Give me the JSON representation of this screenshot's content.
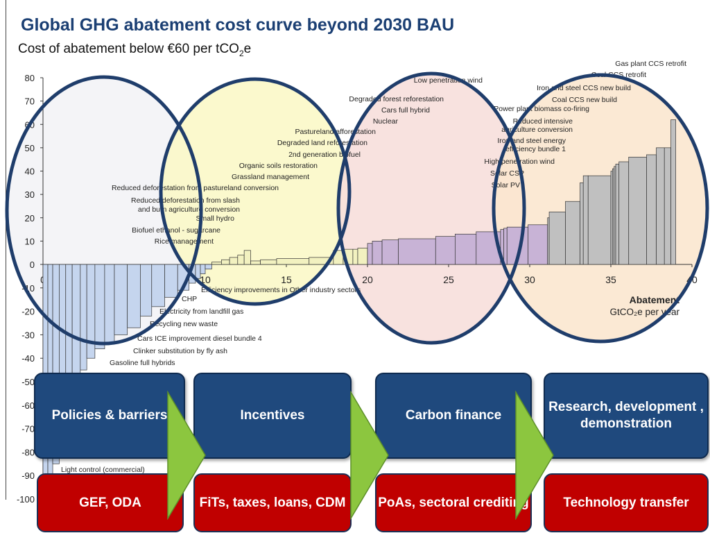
{
  "title": "Global GHG abatement cost curve beyond 2030 BAU",
  "subtitle_prefix": "Cost of abatement below €60 per tCO",
  "subtitle_sub": "2",
  "subtitle_suffix": "e",
  "colors": {
    "title": "#1b3f73",
    "box_blue": "#1f497d",
    "box_red": "#c00000",
    "arrow_green": "#8cc63f",
    "ellipse_stroke": "#1f3d6b",
    "fill_negative": "#c5d5ee",
    "fill_low": "#f2f1c0",
    "fill_mid": "#c8b3d6",
    "fill_high": "#c0c0c0"
  },
  "chart_data": {
    "type": "bar",
    "variant": "marginal abatement cost curve (variable-width bars)",
    "ylim": [
      -100,
      80
    ],
    "xlim": [
      0,
      40
    ],
    "y_ticks": [
      "80",
      "70",
      "60",
      "50",
      "40",
      "30",
      "20",
      "10",
      "0",
      "-10",
      "-20",
      "-30",
      "-40",
      "-50",
      "-60",
      "-70",
      "-80",
      "-90",
      "-100"
    ],
    "x_ticks": [
      "0",
      "5",
      "10",
      "15",
      "20",
      "25",
      "30",
      "35",
      "40"
    ],
    "xlabel_line1": "Abatement",
    "xlabel_line2": "GtCO₂e per year",
    "series": [
      {
        "values_x_start_width_cost": [
          [
            0.0,
            0.3,
            -100
          ],
          [
            0.3,
            0.3,
            -92
          ],
          [
            0.6,
            0.4,
            -85
          ],
          [
            1.0,
            0.4,
            -70
          ],
          [
            1.4,
            0.4,
            -60
          ],
          [
            1.8,
            0.5,
            -50
          ],
          [
            2.3,
            0.4,
            -45
          ],
          [
            2.7,
            0.5,
            -40
          ],
          [
            3.2,
            0.6,
            -36
          ],
          [
            3.8,
            0.6,
            -34
          ],
          [
            4.4,
            0.8,
            -30
          ],
          [
            5.2,
            0.8,
            -27
          ],
          [
            6.0,
            0.7,
            -22
          ],
          [
            6.7,
            0.8,
            -18
          ],
          [
            7.5,
            0.8,
            -14
          ],
          [
            8.3,
            0.7,
            -11
          ],
          [
            9.0,
            0.4,
            -8
          ],
          [
            9.4,
            0.3,
            -6
          ],
          [
            9.7,
            0.3,
            -4
          ],
          [
            10.0,
            0.4,
            -2
          ],
          [
            10.4,
            0.6,
            1
          ],
          [
            11.0,
            0.5,
            2
          ],
          [
            11.5,
            0.5,
            3
          ],
          [
            12.0,
            0.4,
            4
          ],
          [
            12.4,
            0.4,
            6
          ],
          [
            12.8,
            0.6,
            1.5
          ],
          [
            13.4,
            1.0,
            2
          ],
          [
            14.4,
            2.0,
            2.5
          ],
          [
            16.4,
            1.5,
            3
          ],
          [
            17.9,
            0.6,
            6
          ],
          [
            18.5,
            0.6,
            6.5
          ],
          [
            19.1,
            0.3,
            6.5
          ],
          [
            19.4,
            0.6,
            7
          ],
          [
            20.0,
            0.3,
            9
          ],
          [
            20.3,
            0.6,
            10
          ],
          [
            20.9,
            1.0,
            10.5
          ],
          [
            21.9,
            2.3,
            11
          ],
          [
            24.2,
            1.2,
            12
          ],
          [
            25.4,
            1.3,
            13
          ],
          [
            26.7,
            1.5,
            14
          ],
          [
            28.2,
            0.2,
            15
          ],
          [
            28.4,
            0.2,
            15.5
          ],
          [
            28.6,
            1.3,
            16
          ],
          [
            29.9,
            1.2,
            17
          ],
          [
            31.1,
            0.1,
            20
          ],
          [
            31.2,
            1.0,
            22.5
          ],
          [
            32.2,
            0.9,
            27
          ],
          [
            33.1,
            0.2,
            35
          ],
          [
            33.3,
            0.3,
            38
          ],
          [
            33.6,
            1.4,
            38
          ],
          [
            35.0,
            0.1,
            40
          ],
          [
            35.1,
            0.1,
            41
          ],
          [
            35.2,
            0.1,
            42
          ],
          [
            35.3,
            0.2,
            43
          ],
          [
            35.5,
            0.6,
            44
          ],
          [
            36.1,
            1.1,
            46
          ],
          [
            37.2,
            0.6,
            47
          ],
          [
            37.8,
            0.5,
            50
          ],
          [
            38.3,
            0.4,
            50
          ],
          [
            38.7,
            0.3,
            62
          ]
        ]
      }
    ],
    "annotations_top": [
      "Gas plant CCS retrofit",
      "Coal CCS retrofit",
      "Iron and steel CCS new build",
      "Coal CCS new build",
      "Power plant biomass co-firing",
      "Reduced intensive agriculture conversion",
      "Iron and steel energy efficiency bundle 1",
      "High penetration wind",
      "Solar CSP",
      "Solar PV",
      "Low penetration wind",
      "Degraded forest reforestation",
      "Cars full hybrid",
      "Nuclear",
      "Pastureland afforestation",
      "Degraded land reforestation",
      "2nd generation biofuel",
      "Organic soils restoration",
      "Grassland management",
      "Reduced deforestation from pastureland conversion",
      "Reduced deforestation from slash and burn agriculture conversion",
      "Small hydro",
      "Biofuel ethanol - sugarcane",
      "Rice management"
    ],
    "annotations_bottom": [
      "Efficiency improvements in Other industry sectors",
      "CHP",
      "Electricity from landfill gas",
      "Recycling new waste",
      "Cars ICE improvement diesel bundle 4",
      "Clinker substitution by fly ash",
      "Gasoline full hybrids",
      "Light control (commercial)"
    ]
  },
  "boxes": {
    "blue": [
      "Policies & barriers",
      "Incentives",
      "Carbon finance",
      "Research, development , demonstration"
    ],
    "red": [
      "GEF, ODA",
      "FiTs, taxes, loans, CDM",
      "PoAs, sectoral crediting",
      "Technology transfer"
    ]
  }
}
